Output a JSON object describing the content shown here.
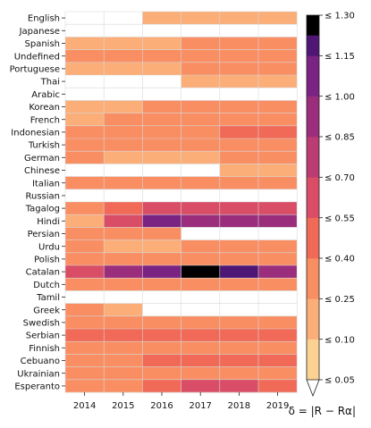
{
  "chart_data": {
    "type": "heatmap",
    "title": "",
    "xlabel": "",
    "ylabel": "",
    "x": [
      "2014",
      "2015",
      "2016",
      "2017",
      "2018",
      "2019"
    ],
    "y": [
      "English",
      "Japanese",
      "Spanish",
      "Undefined",
      "Portuguese",
      "Thai",
      "Arabic",
      "Korean",
      "French",
      "Indonesian",
      "Turkish",
      "German",
      "Chinese",
      "Italian",
      "Russian",
      "Tagalog",
      "Hindi",
      "Persian",
      "Urdu",
      "Polish",
      "Catalan",
      "Dutch",
      "Tamil",
      "Greek",
      "Swedish",
      "Serbian",
      "Finnish",
      "Cebuano",
      "Ukrainian",
      "Esperanto"
    ],
    "values": [
      [
        null,
        null,
        1,
        1,
        1,
        1
      ],
      [
        null,
        null,
        null,
        null,
        null,
        null
      ],
      [
        1,
        1,
        1,
        2,
        2,
        2
      ],
      [
        2,
        2,
        2,
        2,
        2,
        2
      ],
      [
        1,
        1,
        1,
        2,
        2,
        2
      ],
      [
        null,
        null,
        null,
        1,
        1,
        1
      ],
      [
        null,
        null,
        null,
        null,
        null,
        null
      ],
      [
        1,
        1,
        2,
        2,
        2,
        2
      ],
      [
        1,
        2,
        2,
        2,
        2,
        2
      ],
      [
        2,
        2,
        2,
        2,
        3,
        3
      ],
      [
        2,
        2,
        2,
        2,
        2,
        2
      ],
      [
        2,
        1,
        1,
        1,
        2,
        2
      ],
      [
        null,
        null,
        null,
        null,
        1,
        1
      ],
      [
        2,
        2,
        2,
        2,
        2,
        2
      ],
      [
        null,
        null,
        null,
        null,
        null,
        null
      ],
      [
        2,
        3,
        4,
        4,
        4,
        4
      ],
      [
        1,
        4,
        7,
        6,
        6,
        6
      ],
      [
        2,
        2,
        2,
        null,
        null,
        null
      ],
      [
        2,
        1,
        1,
        2,
        2,
        2
      ],
      [
        2,
        2,
        2,
        2,
        2,
        2
      ],
      [
        4,
        6,
        7,
        9,
        8,
        6
      ],
      [
        2,
        2,
        2,
        2,
        2,
        2
      ],
      [
        null,
        null,
        null,
        null,
        null,
        null
      ],
      [
        2,
        1,
        null,
        null,
        null,
        null
      ],
      [
        2,
        2,
        2,
        2,
        2,
        2
      ],
      [
        3,
        3,
        3,
        3,
        3,
        3
      ],
      [
        2,
        2,
        2,
        2,
        2,
        2
      ],
      [
        2,
        2,
        3,
        3,
        3,
        3
      ],
      [
        2,
        2,
        2,
        2,
        2,
        2
      ],
      [
        2,
        2,
        3,
        4,
        4,
        3
      ]
    ],
    "colorbar": {
      "label": "δ = |R − Rα|",
      "ticks": [
        "≤ 0.05",
        "≤ 0.10",
        "≤ 0.25",
        "≤ 0.40",
        "≤ 0.55",
        "≤ 0.70",
        "≤ 0.85",
        "≤ 1.00",
        "≤ 1.15",
        "≤ 1.30"
      ],
      "colors": [
        "#fcd292",
        "#fbae78",
        "#f98e63",
        "#f06a57",
        "#d94d66",
        "#ba3c73",
        "#9b2e7c",
        "#7b2382",
        "#4e1675",
        "#000000"
      ]
    },
    "grid": true,
    "legend": "right"
  }
}
